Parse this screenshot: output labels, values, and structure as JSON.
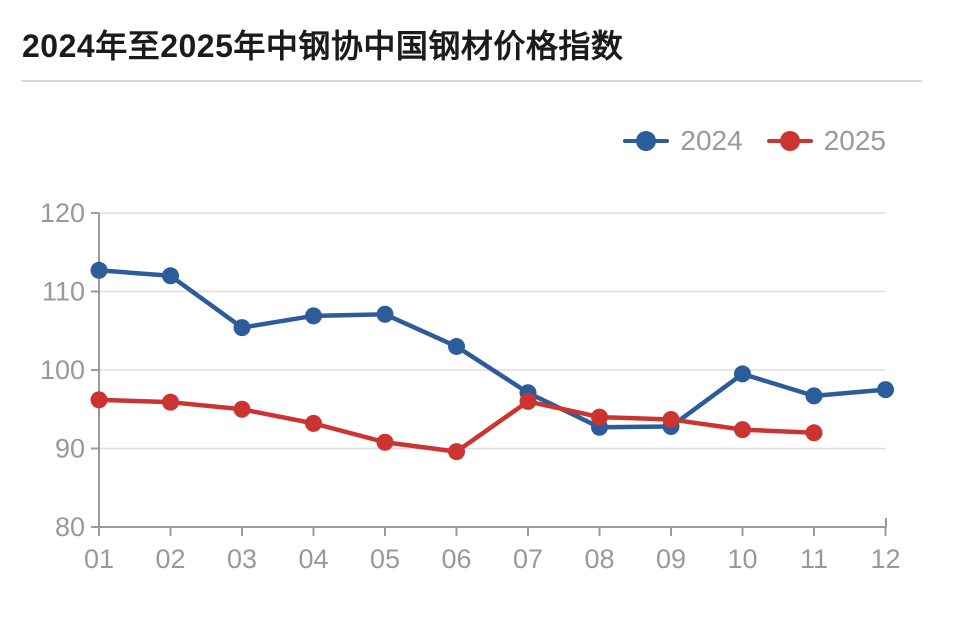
{
  "title": "2024年至2025年中钢协中国钢材价格指数",
  "chart_data": {
    "type": "line",
    "title": "2024年至2025年中钢协中国钢材价格指数",
    "categories": [
      "01",
      "02",
      "03",
      "04",
      "05",
      "06",
      "07",
      "08",
      "09",
      "10",
      "11",
      "12"
    ],
    "series": [
      {
        "name": "2024",
        "color": "#2c5c99",
        "values": [
          112.7,
          112.0,
          105.4,
          106.9,
          107.1,
          103.0,
          97.1,
          92.7,
          92.8,
          99.5,
          96.7,
          97.5
        ]
      },
      {
        "name": "2025",
        "color": "#cb3431",
        "values": [
          96.2,
          95.9,
          95.0,
          93.2,
          90.8,
          89.6,
          96.0,
          94.0,
          93.7,
          92.4,
          92.0,
          null
        ]
      }
    ],
    "xlabel": "",
    "ylabel": "",
    "ylim": [
      80,
      120
    ],
    "yticks": [
      80,
      90,
      100,
      110,
      120
    ],
    "grid": true,
    "legend_position": "top-right",
    "colors": {
      "axis": "#9a9a9a",
      "gridline": "#dddddd",
      "tick_label": "#999999",
      "legend_label": "#999999",
      "title_text": "#1b1b1b",
      "divider": "#d8d8d8"
    }
  }
}
